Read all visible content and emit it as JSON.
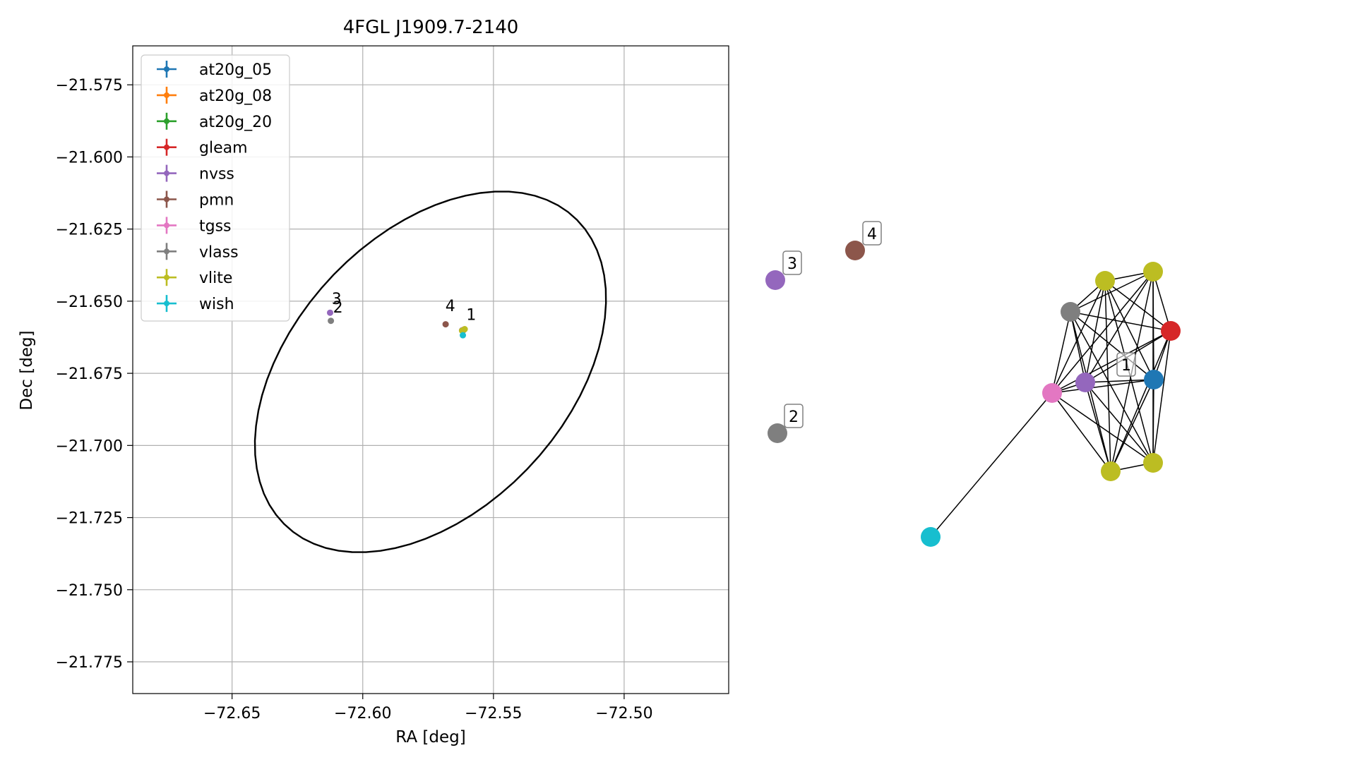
{
  "chart_data": [
    {
      "type": "scatter",
      "title": "4FGL J1909.7-2140",
      "xlabel": "RA [deg]",
      "ylabel": "Dec [deg]",
      "xlim": [
        -72.688,
        -72.46
      ],
      "ylim": [
        -21.786,
        -21.5615
      ],
      "x_ticks": [
        -72.65,
        -72.6,
        -72.55,
        -72.5
      ],
      "x_tick_labels": [
        "−72.65",
        "−72.60",
        "−72.55",
        "−72.50"
      ],
      "y_ticks": [
        -21.575,
        -21.6,
        -21.625,
        -21.65,
        -21.675,
        -21.7,
        -21.725,
        -21.75,
        -21.775
      ],
      "y_tick_labels": [
        "−21.575",
        "−21.600",
        "−21.625",
        "−21.650",
        "−21.675",
        "−21.700",
        "−21.725",
        "−21.750",
        "−21.775"
      ],
      "grid": true,
      "legend_position": "upper-left",
      "series": [
        {
          "name": "at20g_05",
          "color": "#1f77b4",
          "points": [
            [
              -72.5615,
              -21.66
            ]
          ]
        },
        {
          "name": "at20g_08",
          "color": "#ff7f0e",
          "points": [
            [
              -72.5615,
              -21.66
            ]
          ]
        },
        {
          "name": "at20g_20",
          "color": "#2ca02c",
          "points": [
            [
              -72.5615,
              -21.66
            ]
          ]
        },
        {
          "name": "gleam",
          "color": "#d62728",
          "points": [
            [
              -72.5612,
              -21.6598
            ]
          ]
        },
        {
          "name": "nvss",
          "color": "#9467bd",
          "points": [
            [
              -72.6125,
              -21.654
            ],
            [
              -72.562,
              -21.6601
            ]
          ]
        },
        {
          "name": "pmn",
          "color": "#8c564b",
          "points": [
            [
              -72.5683,
              -21.658
            ]
          ]
        },
        {
          "name": "tgss",
          "color": "#e377c2",
          "points": [
            [
              -72.5618,
              -21.6601
            ]
          ]
        },
        {
          "name": "vlass",
          "color": "#7f7f7f",
          "points": [
            [
              -72.6122,
              -21.6568
            ],
            [
              -72.5615,
              -21.66
            ]
          ]
        },
        {
          "name": "vlite",
          "color": "#bcbd22",
          "points": [
            [
              -72.561,
              -21.6597
            ],
            [
              -72.562,
              -21.6602
            ]
          ]
        },
        {
          "name": "wish",
          "color": "#17becf",
          "points": [
            [
              -72.5617,
              -21.6618
            ]
          ]
        }
      ],
      "annotations": [
        {
          "text": "1",
          "x": -72.5585,
          "y": -21.6565
        },
        {
          "text": "2",
          "x": -72.6095,
          "y": -21.654
        },
        {
          "text": "3",
          "x": -72.61,
          "y": -21.651
        },
        {
          "text": "4",
          "x": -72.5665,
          "y": -21.6535
        }
      ],
      "ellipse": {
        "center": [
          -72.5741,
          -21.6745
        ],
        "semi_major": 0.0771,
        "semi_minor": 0.0498,
        "angle_deg": 40
      }
    },
    {
      "type": "network",
      "nodes": [
        {
          "id": "n1",
          "color": "#bcbd22"
        },
        {
          "id": "n2",
          "color": "#bcbd22"
        },
        {
          "id": "n3",
          "color": "#7f7f7f"
        },
        {
          "id": "n4",
          "color": "#d62728"
        },
        {
          "id": "n5",
          "color": "#9467bd"
        },
        {
          "id": "n6",
          "color": "#1f77b4"
        },
        {
          "id": "n7",
          "color": "#e377c2"
        },
        {
          "id": "n8",
          "color": "#bcbd22"
        },
        {
          "id": "n9",
          "color": "#bcbd22"
        },
        {
          "id": "n10",
          "color": "#17becf"
        },
        {
          "id": "n11",
          "color": "#9467bd"
        },
        {
          "id": "n12",
          "color": "#8c564b"
        },
        {
          "id": "n13",
          "color": "#7f7f7f"
        }
      ],
      "edges": [
        [
          "n1",
          "n2"
        ],
        [
          "n1",
          "n3"
        ],
        [
          "n1",
          "n4"
        ],
        [
          "n1",
          "n5"
        ],
        [
          "n1",
          "n6"
        ],
        [
          "n1",
          "n7"
        ],
        [
          "n1",
          "n8"
        ],
        [
          "n1",
          "n9"
        ],
        [
          "n2",
          "n3"
        ],
        [
          "n2",
          "n4"
        ],
        [
          "n2",
          "n5"
        ],
        [
          "n2",
          "n6"
        ],
        [
          "n2",
          "n7"
        ],
        [
          "n2",
          "n8"
        ],
        [
          "n2",
          "n9"
        ],
        [
          "n3",
          "n4"
        ],
        [
          "n3",
          "n5"
        ],
        [
          "n3",
          "n6"
        ],
        [
          "n3",
          "n7"
        ],
        [
          "n3",
          "n8"
        ],
        [
          "n3",
          "n9"
        ],
        [
          "n4",
          "n5"
        ],
        [
          "n4",
          "n6"
        ],
        [
          "n4",
          "n7"
        ],
        [
          "n4",
          "n8"
        ],
        [
          "n4",
          "n9"
        ],
        [
          "n5",
          "n6"
        ],
        [
          "n5",
          "n7"
        ],
        [
          "n5",
          "n8"
        ],
        [
          "n5",
          "n9"
        ],
        [
          "n6",
          "n7"
        ],
        [
          "n6",
          "n8"
        ],
        [
          "n6",
          "n9"
        ],
        [
          "n7",
          "n8"
        ],
        [
          "n7",
          "n9"
        ],
        [
          "n7",
          "n10"
        ],
        [
          "n8",
          "n9"
        ]
      ],
      "labels": [
        {
          "text": "1"
        },
        {
          "text": "2"
        },
        {
          "text": "3"
        },
        {
          "text": "4"
        }
      ]
    }
  ]
}
